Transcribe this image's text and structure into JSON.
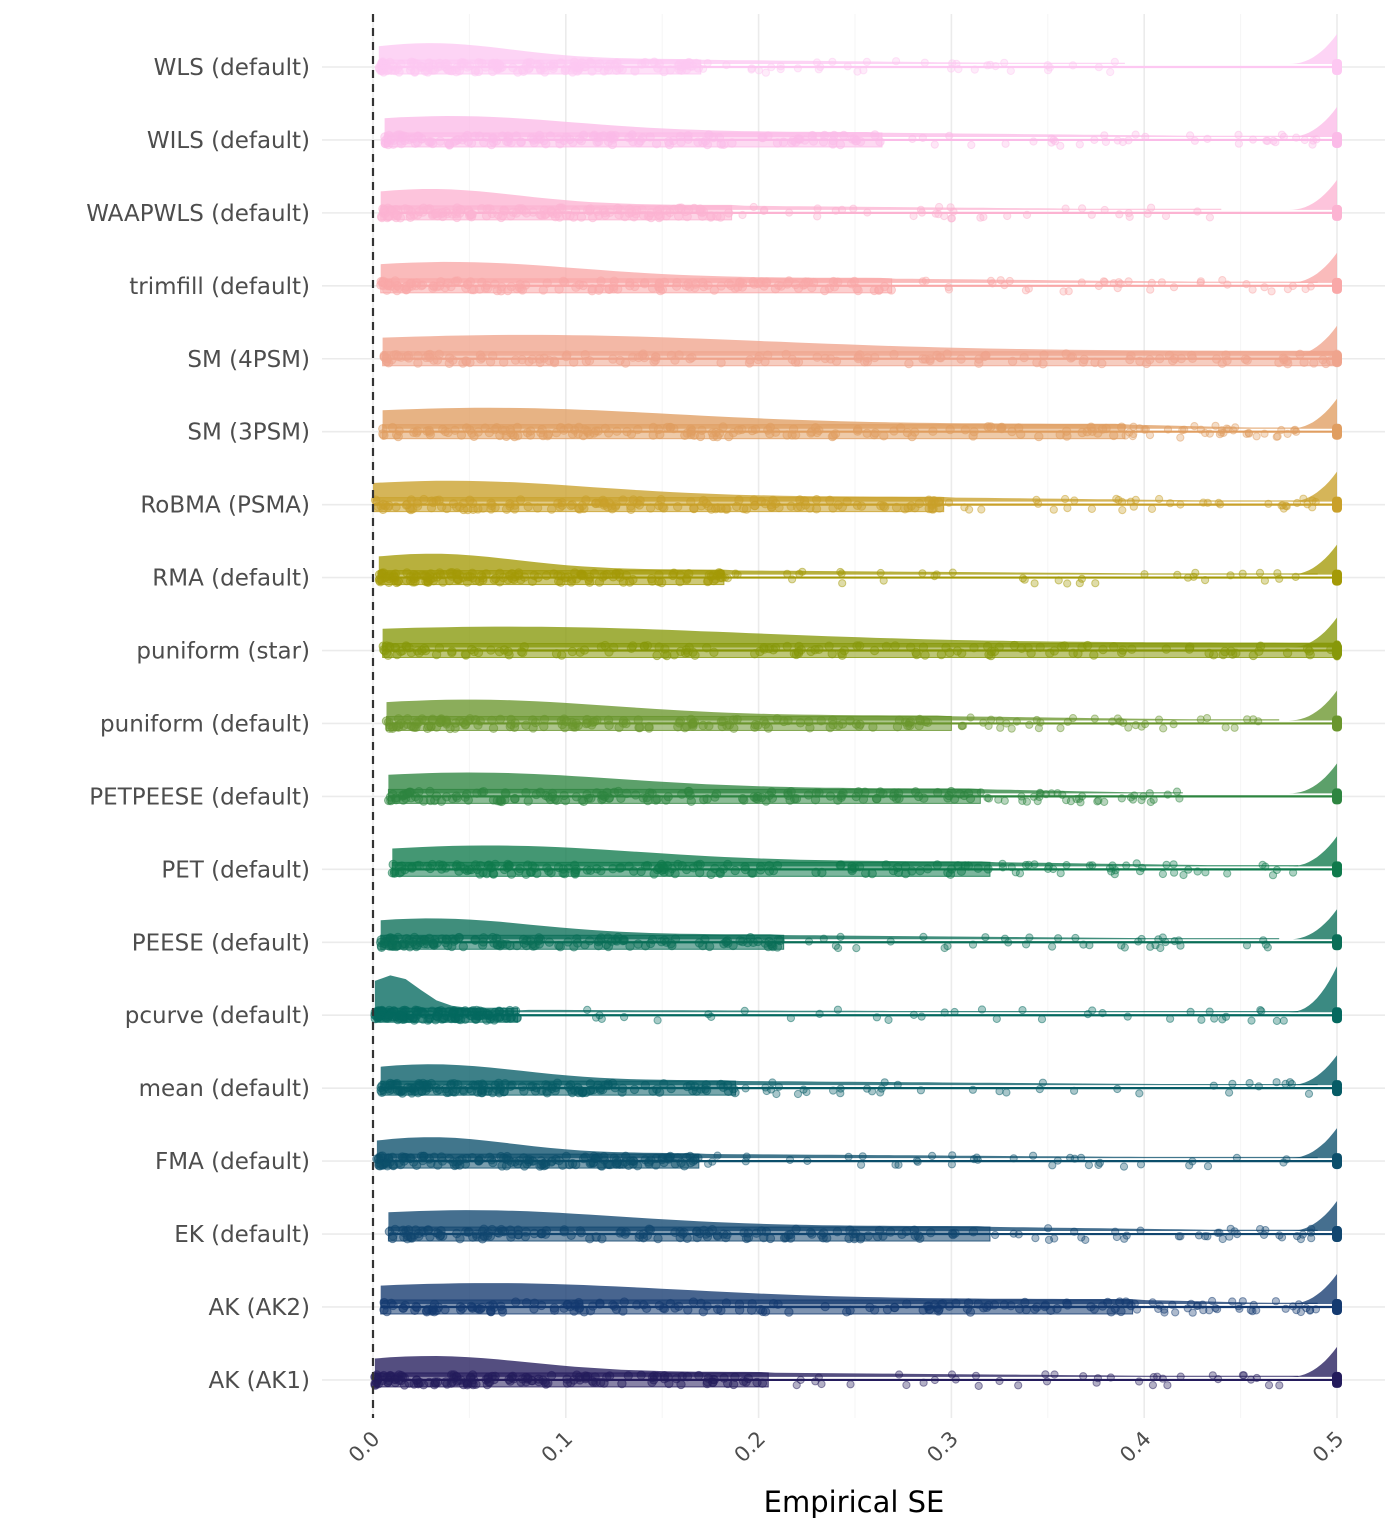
{
  "chart_data": {
    "type": "raincloud",
    "xlabel": "Empirical SE",
    "xlim": [
      0,
      0.5
    ],
    "x_ticks": [
      "0.0",
      "0.1",
      "0.2",
      "0.3",
      "0.4",
      "0.5"
    ],
    "x_tick_values": [
      0,
      0.1,
      0.2,
      0.3,
      0.4,
      0.5
    ],
    "reference_line": {
      "x": 0,
      "style": "dashed"
    },
    "grid": true,
    "legend": "none",
    "categories": [
      {
        "label": "WLS (default)",
        "color": "#fdc8f2",
        "box_q1": 0.003,
        "box_q3": 0.17,
        "median": 0.03,
        "tail_max": 0.39,
        "cap": 0.5
      },
      {
        "label": "WILS (default)",
        "color": "#fbbbe8",
        "box_q1": 0.006,
        "box_q3": 0.264,
        "median": 0.04,
        "tail_max": 0.49,
        "cap": 0.5
      },
      {
        "label": "WAAPWLS (default)",
        "color": "#fcb3d2",
        "box_q1": 0.004,
        "box_q3": 0.186,
        "median": 0.03,
        "tail_max": 0.44,
        "cap": 0.5
      },
      {
        "label": "trimfill (default)",
        "color": "#f9a8a8",
        "box_q1": 0.004,
        "box_q3": 0.269,
        "median": 0.04,
        "tail_max": 0.49,
        "cap": 0.5
      },
      {
        "label": "SM (4PSM)",
        "color": "#efa48d",
        "box_q1": 0.005,
        "box_q3": 0.5,
        "median": 0.08,
        "tail_max": 0.5,
        "cap": 0.5
      },
      {
        "label": "SM (3PSM)",
        "color": "#e09e61",
        "box_q1": 0.005,
        "box_q3": 0.39,
        "median": 0.06,
        "tail_max": 0.48,
        "cap": 0.5
      },
      {
        "label": "RoBMA (PSMA)",
        "color": "#c9a02a",
        "box_q1": 0.0,
        "box_q3": 0.296,
        "median": 0.04,
        "tail_max": 0.49,
        "cap": 0.5
      },
      {
        "label": "RMA (default)",
        "color": "#a49a07",
        "box_q1": 0.003,
        "box_q3": 0.182,
        "median": 0.03,
        "tail_max": 0.49,
        "cap": 0.5
      },
      {
        "label": "puniform (star)",
        "color": "#87980a",
        "box_q1": 0.005,
        "box_q3": 0.5,
        "median": 0.07,
        "tail_max": 0.5,
        "cap": 0.5
      },
      {
        "label": "puniform (default)",
        "color": "#6a962d",
        "box_q1": 0.007,
        "box_q3": 0.3,
        "median": 0.05,
        "tail_max": 0.47,
        "cap": 0.5
      },
      {
        "label": "PETPEESE (default)",
        "color": "#2e8540",
        "box_q1": 0.008,
        "box_q3": 0.315,
        "median": 0.05,
        "tail_max": 0.42,
        "cap": 0.5
      },
      {
        "label": "PET (default)",
        "color": "#0f7a4c",
        "box_q1": 0.01,
        "box_q3": 0.32,
        "median": 0.06,
        "tail_max": 0.48,
        "cap": 0.5
      },
      {
        "label": "PEESE (default)",
        "color": "#0a6e57",
        "box_q1": 0.004,
        "box_q3": 0.213,
        "median": 0.03,
        "tail_max": 0.47,
        "cap": 0.5
      },
      {
        "label": "pcurve (default)",
        "color": "#04695f",
        "box_q1": 0.001,
        "box_q3": 0.075,
        "median": 0.01,
        "tail_max": 0.48,
        "cap": 0.5
      },
      {
        "label": "mean (default)",
        "color": "#075c66",
        "box_q1": 0.004,
        "box_q3": 0.188,
        "median": 0.03,
        "tail_max": 0.49,
        "cap": 0.5
      },
      {
        "label": "FMA (default)",
        "color": "#0c4f6b",
        "box_q1": 0.002,
        "box_q3": 0.169,
        "median": 0.03,
        "tail_max": 0.49,
        "cap": 0.5
      },
      {
        "label": "EK (default)",
        "color": "#11466f",
        "box_q1": 0.008,
        "box_q3": 0.32,
        "median": 0.05,
        "tail_max": 0.49,
        "cap": 0.5
      },
      {
        "label": "AK (AK2)",
        "color": "#143a70",
        "box_q1": 0.004,
        "box_q3": 0.394,
        "median": 0.06,
        "tail_max": 0.49,
        "cap": 0.5
      },
      {
        "label": "AK (AK1)",
        "color": "#241c5c",
        "box_q1": 0.001,
        "box_q3": 0.205,
        "median": 0.03,
        "tail_max": 0.48,
        "cap": 0.5
      }
    ]
  }
}
